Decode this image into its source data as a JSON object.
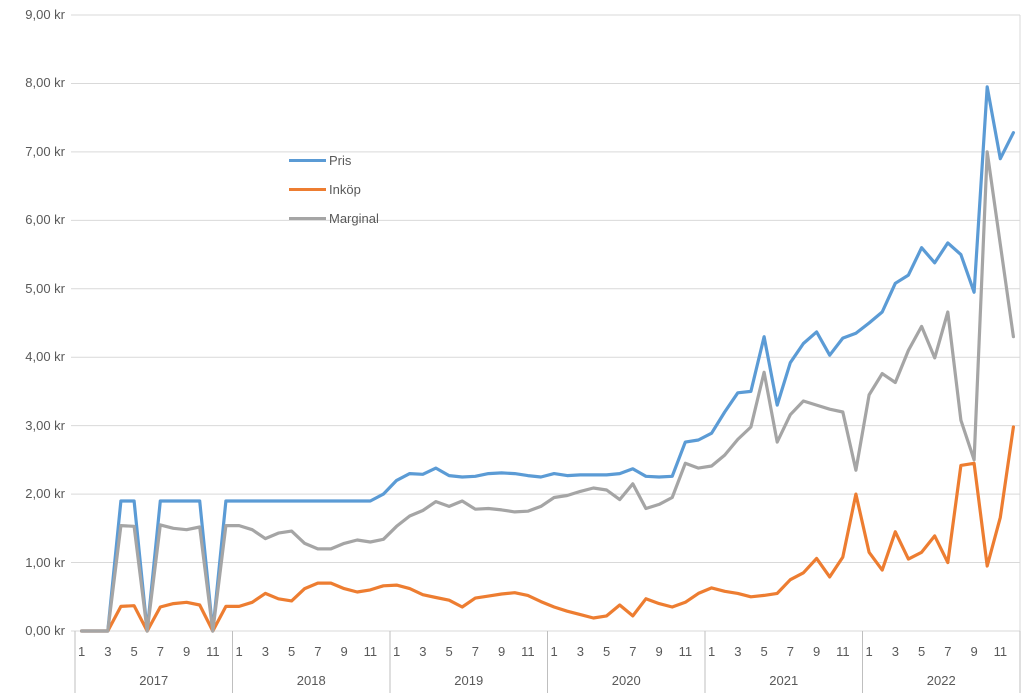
{
  "chart_data": {
    "type": "line",
    "title": "",
    "xlabel": "",
    "ylabel": "",
    "ylim": [
      0,
      9
    ],
    "grid": true,
    "legend_position": "inside-top-left",
    "currency_suffix": "kr",
    "y_ticks": [
      "0,00 kr",
      "1,00 kr",
      "2,00 kr",
      "3,00 kr",
      "4,00 kr",
      "5,00 kr",
      "6,00 kr",
      "7,00 kr",
      "8,00 kr",
      "9,00 kr"
    ],
    "years": [
      "2017",
      "2018",
      "2019",
      "2020",
      "2021",
      "2022"
    ],
    "month_ticks": [
      "1",
      "3",
      "5",
      "7",
      "9",
      "11"
    ],
    "axis_text_color": "#595959",
    "grid_color": "#d9d9d9",
    "divider_color": "#bfbfbf",
    "series": [
      {
        "name": "Pris",
        "color": "#5b9bd5",
        "values": [
          0,
          0,
          0,
          1.9,
          1.9,
          0,
          1.9,
          1.9,
          1.9,
          1.9,
          0,
          1.9,
          1.9,
          1.9,
          1.9,
          1.9,
          1.9,
          1.9,
          1.9,
          1.9,
          1.9,
          1.9,
          1.9,
          2.0,
          2.2,
          2.3,
          2.29,
          2.38,
          2.27,
          2.25,
          2.26,
          2.3,
          2.31,
          2.3,
          2.27,
          2.25,
          2.3,
          2.27,
          2.28,
          2.28,
          2.28,
          2.3,
          2.37,
          2.26,
          2.25,
          2.26,
          2.76,
          2.79,
          2.89,
          3.2,
          3.48,
          3.5,
          4.3,
          3.3,
          3.92,
          4.2,
          4.37,
          4.03,
          4.28,
          4.35,
          4.5,
          4.66,
          5.08,
          5.2,
          5.6,
          5.38,
          5.67,
          5.5,
          4.95,
          7.95,
          6.9,
          7.28
        ]
      },
      {
        "name": "Inköp",
        "color": "#ed7d31",
        "values": [
          0,
          0,
          0,
          0.36,
          0.37,
          0,
          0.35,
          0.4,
          0.42,
          0.38,
          0,
          0.36,
          0.36,
          0.42,
          0.55,
          0.47,
          0.44,
          0.62,
          0.7,
          0.7,
          0.62,
          0.57,
          0.6,
          0.66,
          0.67,
          0.62,
          0.53,
          0.49,
          0.45,
          0.35,
          0.48,
          0.51,
          0.54,
          0.56,
          0.52,
          0.43,
          0.35,
          0.29,
          0.24,
          0.19,
          0.22,
          0.38,
          0.22,
          0.47,
          0.4,
          0.35,
          0.42,
          0.55,
          0.63,
          0.58,
          0.55,
          0.5,
          0.52,
          0.55,
          0.75,
          0.85,
          1.06,
          0.79,
          1.08,
          2.0,
          1.15,
          0.89,
          1.45,
          1.05,
          1.15,
          1.39,
          1.0,
          2.42,
          2.45,
          0.95,
          1.66,
          2.98
        ]
      },
      {
        "name": "Marginal",
        "color": "#a5a5a5",
        "values": [
          0,
          0,
          0,
          1.54,
          1.53,
          0,
          1.55,
          1.5,
          1.48,
          1.52,
          0,
          1.54,
          1.54,
          1.48,
          1.35,
          1.43,
          1.46,
          1.28,
          1.2,
          1.2,
          1.28,
          1.33,
          1.3,
          1.34,
          1.53,
          1.68,
          1.76,
          1.89,
          1.82,
          1.9,
          1.78,
          1.79,
          1.77,
          1.74,
          1.75,
          1.82,
          1.95,
          1.98,
          2.04,
          2.09,
          2.06,
          1.92,
          2.15,
          1.79,
          1.85,
          1.95,
          2.45,
          2.38,
          2.41,
          2.57,
          2.8,
          2.98,
          3.78,
          2.76,
          3.16,
          3.36,
          3.3,
          3.24,
          3.2,
          2.35,
          3.45,
          3.76,
          3.63,
          4.1,
          4.45,
          3.99,
          4.66,
          3.08,
          2.5,
          7.0,
          5.65,
          4.3
        ]
      }
    ]
  }
}
